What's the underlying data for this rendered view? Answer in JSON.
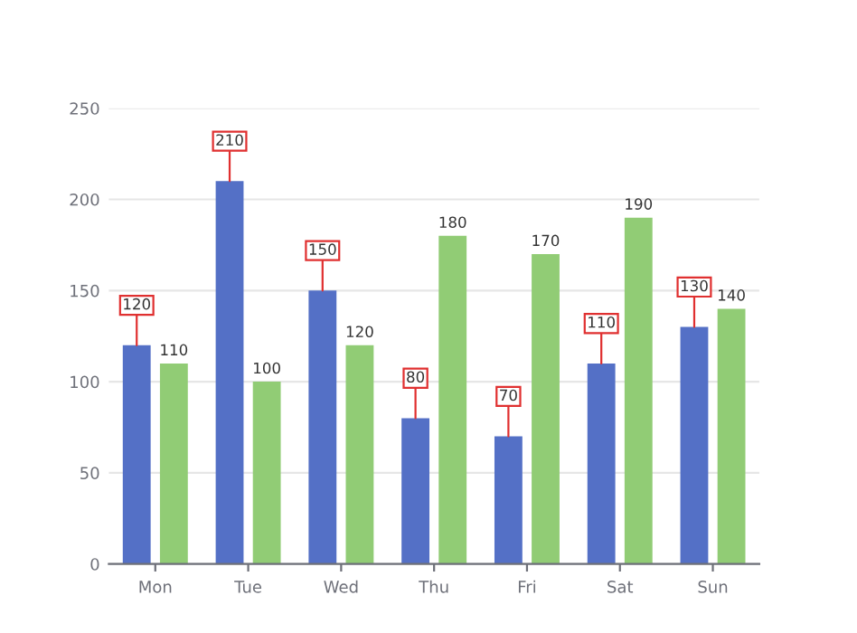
{
  "chart_data": {
    "type": "bar",
    "categories": [
      "Mon",
      "Tue",
      "Wed",
      "Thu",
      "Fri",
      "Sat",
      "Sun"
    ],
    "series": [
      {
        "color": "#5470c6",
        "values": [
          120,
          210,
          150,
          80,
          70,
          110,
          130
        ]
      },
      {
        "color": "#91cc75",
        "values": [
          110,
          100,
          120,
          180,
          170,
          190,
          140
        ]
      }
    ],
    "ylim": [
      0,
      250
    ],
    "yticks": [
      0,
      50,
      100,
      150,
      200,
      250
    ],
    "grid": "y",
    "data_labels": true
  }
}
